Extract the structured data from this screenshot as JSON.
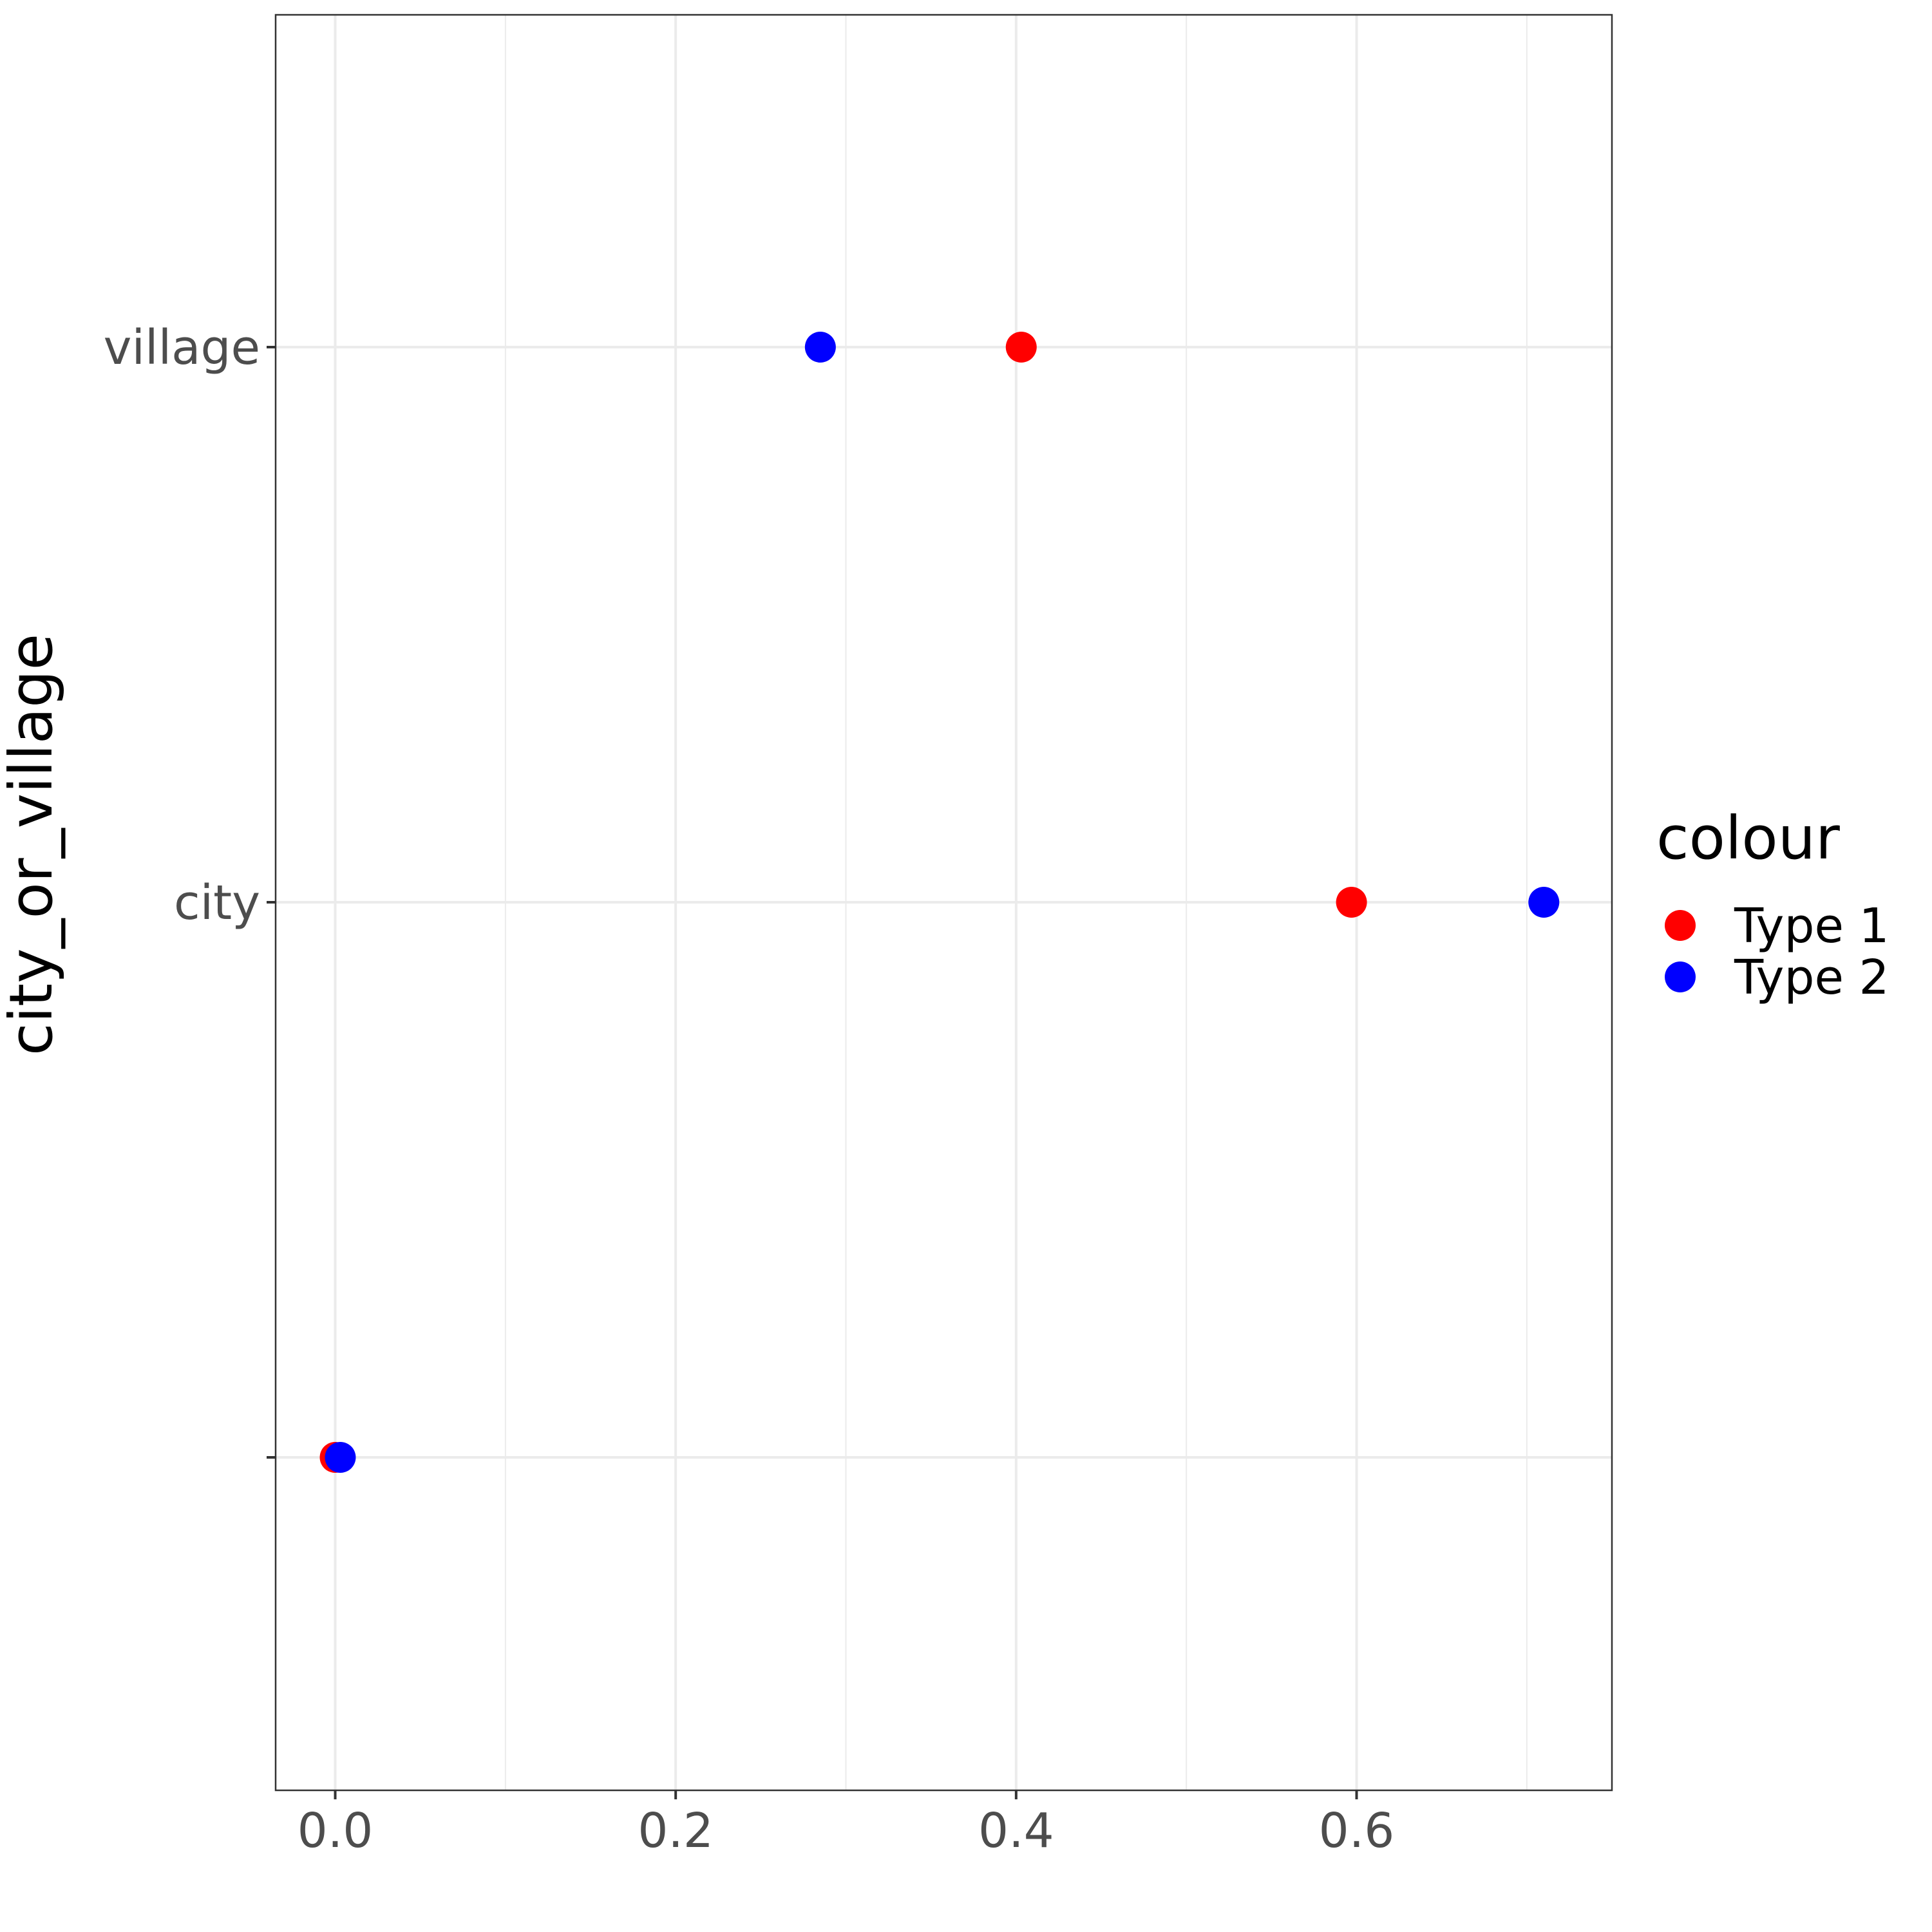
{
  "chart_data": {
    "type": "scatter",
    "xlabel": "",
    "ylabel": "city_or_village",
    "x_ticks": [
      "0.0",
      "0.2",
      "0.4",
      "0.6"
    ],
    "x_tick_values": [
      0.0,
      0.2,
      0.4,
      0.6
    ],
    "xlim": [
      -0.035,
      0.75
    ],
    "y_categories": [
      "",
      "city",
      "village"
    ],
    "grid": true,
    "legend": {
      "title": "colour",
      "placement": "right"
    },
    "series": [
      {
        "name": "Type 1",
        "color": "#ff0000",
        "points": [
          {
            "x": 0.0,
            "y": ""
          },
          {
            "x": 0.597,
            "y": "city"
          },
          {
            "x": 0.403,
            "y": "village"
          }
        ]
      },
      {
        "name": "Type 2",
        "color": "#0000ff",
        "points": [
          {
            "x": 0.003,
            "y": ""
          },
          {
            "x": 0.71,
            "y": "city"
          },
          {
            "x": 0.285,
            "y": "village"
          }
        ]
      }
    ]
  }
}
